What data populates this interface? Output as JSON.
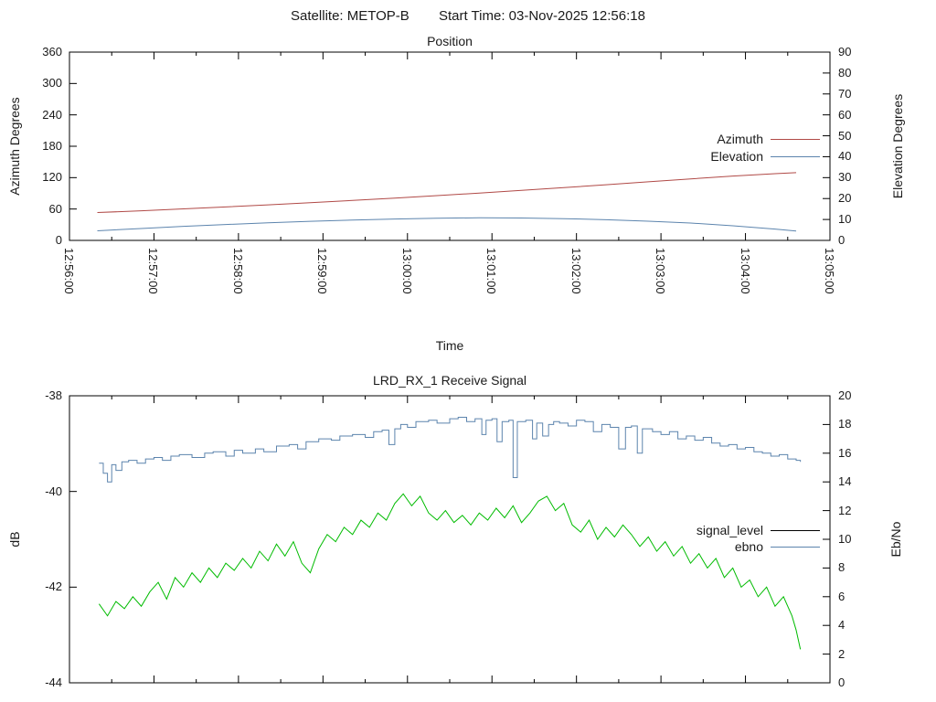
{
  "header": {
    "satellite": "Satellite: METOP-B",
    "start_time": "Start Time: 03-Nov-2025 12:56:18"
  },
  "position_chart": {
    "title": "Position",
    "xlabel": "Time",
    "ylabel_left": "Azimuth Degrees",
    "ylabel_right": "Elevation Degrees",
    "x_tick_labels": [
      "12:56:00",
      "12:57:00",
      "12:58:00",
      "12:59:00",
      "13:00:00",
      "13:01:00",
      "13:02:00",
      "13:03:00",
      "13:04:00",
      "13:05:00"
    ],
    "y_left_ticks": [
      0,
      60,
      120,
      180,
      240,
      300,
      360
    ],
    "y_right_ticks": [
      0,
      10,
      20,
      30,
      40,
      50,
      60,
      70,
      80,
      90
    ],
    "legend": [
      {
        "label": "Azimuth",
        "color": "#b04946"
      },
      {
        "label": "Elevation",
        "color": "#5c84ad"
      }
    ]
  },
  "signal_chart": {
    "title": "LRD_RX_1 Receive Signal",
    "ylabel_left": "dB",
    "ylabel_right": "Eb/No",
    "y_left_ticks": [
      -38,
      -40,
      -42,
      -44
    ],
    "y_right_ticks": [
      0,
      2,
      4,
      6,
      8,
      10,
      12,
      14,
      16,
      18,
      20
    ],
    "legend": [
      {
        "label": "signal_level",
        "color": "#000000"
      },
      {
        "label": "ebno",
        "color": "#5c84ad"
      }
    ]
  },
  "chart_data": [
    {
      "type": "line",
      "title": "Position",
      "xlabel": "Time",
      "x_axis_start": "12:56:00",
      "x_axis_end": "13:05:00",
      "x_unit": "minutes after 12:56:00",
      "x_major_tick_s": 60,
      "x_minor_tick_s": 30,
      "ylim_left": [
        0,
        360
      ],
      "ylim_right": [
        0,
        90
      ],
      "ylabel_left": "Azimuth Degrees",
      "ylabel_right": "Elevation Degrees",
      "legend_position": "inside top right",
      "grid": false,
      "series": [
        {
          "name": "Azimuth",
          "axis": "left",
          "color": "#b04946",
          "x": [
            0.33,
            0.85,
            1.35,
            1.85,
            2.35,
            2.85,
            3.35,
            3.85,
            4.35,
            4.85,
            5.35,
            5.85,
            6.35,
            6.85,
            7.35,
            7.85,
            8.35,
            8.6
          ],
          "y": [
            53.2,
            56.6,
            60.2,
            64.0,
            68.0,
            72.1,
            76.4,
            80.9,
            85.6,
            90.5,
            95.6,
            100.9,
            106.4,
            112.0,
            117.6,
            123.0,
            127.5,
            129.6
          ]
        },
        {
          "name": "Elevation",
          "axis": "right",
          "color": "#5c84ad",
          "x": [
            0.33,
            0.85,
            1.35,
            1.85,
            2.35,
            2.85,
            3.35,
            3.85,
            4.35,
            4.85,
            5.35,
            5.85,
            6.35,
            6.85,
            7.35,
            7.85,
            8.35,
            8.6
          ],
          "y": [
            4.6,
            5.7,
            6.7,
            7.6,
            8.4,
            9.1,
            9.7,
            10.2,
            10.6,
            10.8,
            10.7,
            10.4,
            9.9,
            9.2,
            8.3,
            7.0,
            5.4,
            4.5
          ]
        }
      ]
    },
    {
      "type": "line",
      "title": "LRD_RX_1 Receive Signal",
      "x_axis_start": "12:56:00",
      "x_axis_end": "13:05:00",
      "x_unit": "minutes after 12:56:00",
      "x_major_tick_s": 60,
      "x_minor_tick_s": 30,
      "ylim_left": [
        -44,
        -38
      ],
      "ylim_right": [
        0,
        20
      ],
      "ylabel_left": "dB",
      "ylabel_right": "Eb/No",
      "legend_position": "inside middle right",
      "grid": false,
      "series": [
        {
          "name": "signal_level",
          "axis": "left",
          "color": "#00bb00",
          "legend_color": "#000000",
          "x": [
            0.35,
            0.45,
            0.55,
            0.65,
            0.75,
            0.85,
            0.95,
            1.05,
            1.15,
            1.25,
            1.35,
            1.45,
            1.55,
            1.65,
            1.75,
            1.85,
            1.95,
            2.05,
            2.15,
            2.25,
            2.35,
            2.45,
            2.55,
            2.65,
            2.75,
            2.85,
            2.95,
            3.05,
            3.15,
            3.25,
            3.35,
            3.45,
            3.55,
            3.65,
            3.75,
            3.85,
            3.95,
            4.05,
            4.15,
            4.25,
            4.35,
            4.45,
            4.55,
            4.65,
            4.75,
            4.85,
            4.95,
            5.05,
            5.15,
            5.25,
            5.35,
            5.45,
            5.55,
            5.65,
            5.75,
            5.85,
            5.95,
            6.05,
            6.15,
            6.25,
            6.35,
            6.45,
            6.55,
            6.65,
            6.75,
            6.85,
            6.95,
            7.05,
            7.15,
            7.25,
            7.35,
            7.45,
            7.55,
            7.65,
            7.75,
            7.85,
            7.95,
            8.05,
            8.15,
            8.25,
            8.35,
            8.45,
            8.55,
            8.6,
            8.65
          ],
          "y": [
            -42.35,
            -42.6,
            -42.3,
            -42.45,
            -42.2,
            -42.4,
            -42.1,
            -41.9,
            -42.25,
            -41.8,
            -42.0,
            -41.7,
            -41.9,
            -41.6,
            -41.8,
            -41.5,
            -41.65,
            -41.4,
            -41.6,
            -41.25,
            -41.45,
            -41.1,
            -41.35,
            -41.05,
            -41.5,
            -41.7,
            -41.2,
            -40.9,
            -41.05,
            -40.75,
            -40.9,
            -40.6,
            -40.75,
            -40.45,
            -40.6,
            -40.25,
            -40.05,
            -40.3,
            -40.1,
            -40.45,
            -40.6,
            -40.4,
            -40.65,
            -40.5,
            -40.7,
            -40.45,
            -40.6,
            -40.35,
            -40.55,
            -40.3,
            -40.65,
            -40.45,
            -40.2,
            -40.1,
            -40.4,
            -40.25,
            -40.7,
            -40.85,
            -40.6,
            -41.0,
            -40.75,
            -40.95,
            -40.7,
            -40.9,
            -41.15,
            -40.95,
            -41.25,
            -41.05,
            -41.35,
            -41.15,
            -41.5,
            -41.3,
            -41.6,
            -41.4,
            -41.8,
            -41.6,
            -42.0,
            -41.85,
            -42.2,
            -42.0,
            -42.4,
            -42.2,
            -42.6,
            -42.9,
            -43.3
          ]
        },
        {
          "name": "ebno",
          "axis": "right",
          "color": "#5c84ad",
          "step": true,
          "x": [
            0.35,
            0.4,
            0.45,
            0.5,
            0.55,
            0.62,
            0.7,
            0.8,
            0.9,
            1.0,
            1.1,
            1.2,
            1.3,
            1.45,
            1.6,
            1.7,
            1.85,
            1.95,
            2.05,
            2.2,
            2.3,
            2.45,
            2.6,
            2.7,
            2.8,
            2.95,
            3.1,
            3.2,
            3.35,
            3.5,
            3.6,
            3.7,
            3.78,
            3.85,
            3.92,
            4.0,
            4.1,
            4.25,
            4.35,
            4.5,
            4.6,
            4.7,
            4.8,
            4.88,
            4.93,
            5.0,
            5.06,
            5.12,
            5.2,
            5.25,
            5.3,
            5.4,
            5.48,
            5.53,
            5.6,
            5.67,
            5.73,
            5.8,
            5.9,
            6.0,
            6.1,
            6.2,
            6.3,
            6.4,
            6.5,
            6.58,
            6.65,
            6.72,
            6.78,
            6.9,
            7.0,
            7.1,
            7.2,
            7.3,
            7.4,
            7.5,
            7.6,
            7.7,
            7.8,
            7.9,
            8.0,
            8.1,
            8.2,
            8.3,
            8.4,
            8.5,
            8.6,
            8.65
          ],
          "y": [
            15.3,
            14.6,
            14.0,
            15.2,
            14.8,
            15.4,
            15.5,
            15.3,
            15.6,
            15.7,
            15.5,
            15.8,
            15.9,
            15.7,
            16.0,
            16.1,
            15.8,
            16.2,
            16.0,
            16.3,
            16.1,
            16.5,
            16.6,
            16.3,
            16.8,
            17.0,
            16.9,
            17.2,
            17.3,
            17.1,
            17.5,
            17.6,
            16.6,
            17.7,
            18.0,
            17.8,
            18.2,
            18.3,
            18.1,
            18.4,
            18.5,
            18.2,
            18.4,
            17.3,
            18.3,
            18.4,
            16.8,
            18.2,
            18.3,
            14.3,
            18.2,
            18.3,
            17.0,
            18.1,
            17.2,
            18.0,
            18.2,
            18.1,
            17.9,
            18.3,
            18.2,
            17.5,
            18.0,
            17.8,
            16.3,
            17.8,
            17.9,
            16.0,
            17.7,
            17.5,
            17.3,
            17.5,
            17.0,
            17.2,
            16.9,
            17.1,
            16.7,
            16.5,
            16.6,
            16.3,
            16.4,
            16.1,
            16.0,
            15.8,
            15.9,
            15.6,
            15.5,
            15.4
          ]
        }
      ]
    }
  ]
}
